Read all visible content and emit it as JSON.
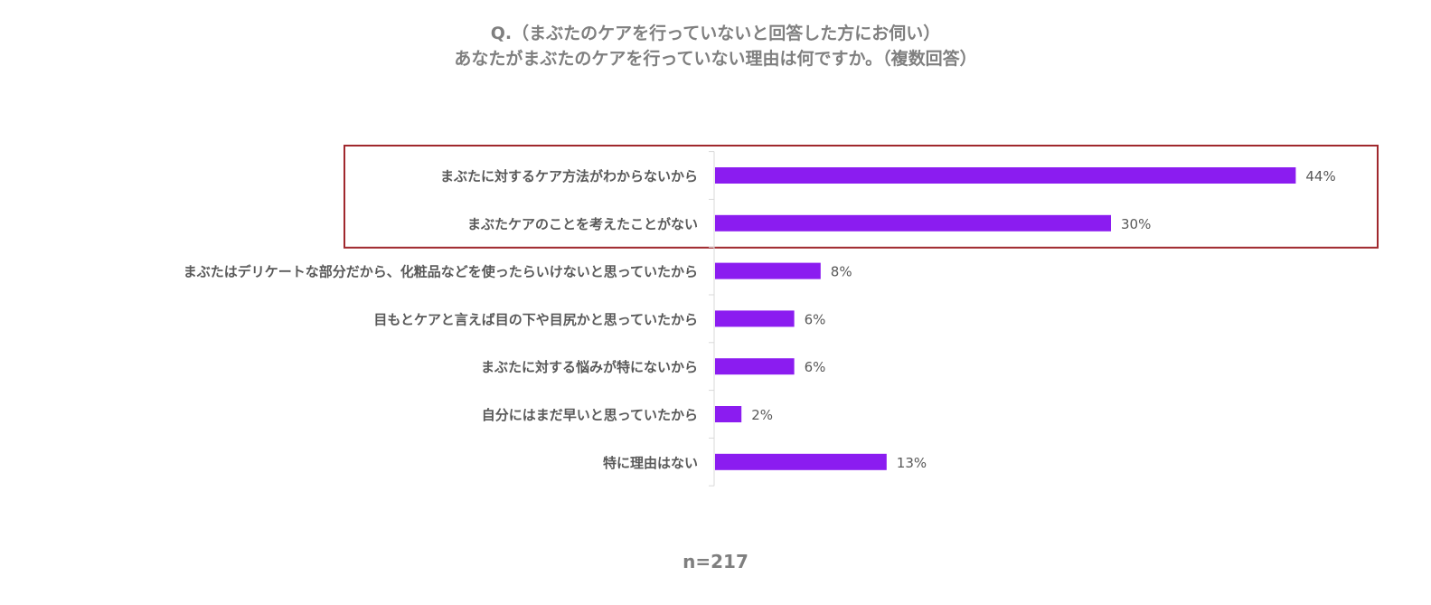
{
  "title_line1": "Q.（まぶたのケアを行っていないと回答した方にお伺い）",
  "title_line2": "あなたがまぶたのケアを行っていない理由は何ですか。（複数回答）",
  "sample_size": "n=217",
  "colors": {
    "bar": "#8b1cf0",
    "highlight_border": "#a0282d",
    "axis": "#d9d9d9",
    "text": "#595959",
    "title": "#7f7f7f"
  },
  "chart_data": {
    "type": "bar",
    "orientation": "horizontal",
    "categories": [
      "まぶたに対するケア方法がわからないから",
      "まぶたケアのことを考えたことがない",
      "まぶたはデリケートな部分だから、化粧品などを使ったらいけないと思っていたから",
      "目もとケアと言えば目の下や目尻かと思っていたから",
      "まぶたに対する悩みが特にないから",
      "自分にはまだ早いと思っていたから",
      "特に理由はない"
    ],
    "values": [
      44,
      30,
      8,
      6,
      6,
      2,
      13
    ],
    "value_labels": [
      "44%",
      "30%",
      "8%",
      "6%",
      "6%",
      "2%",
      "13%"
    ],
    "unit": "%",
    "highlighted_categories": [
      0,
      1
    ],
    "grid": false
  }
}
